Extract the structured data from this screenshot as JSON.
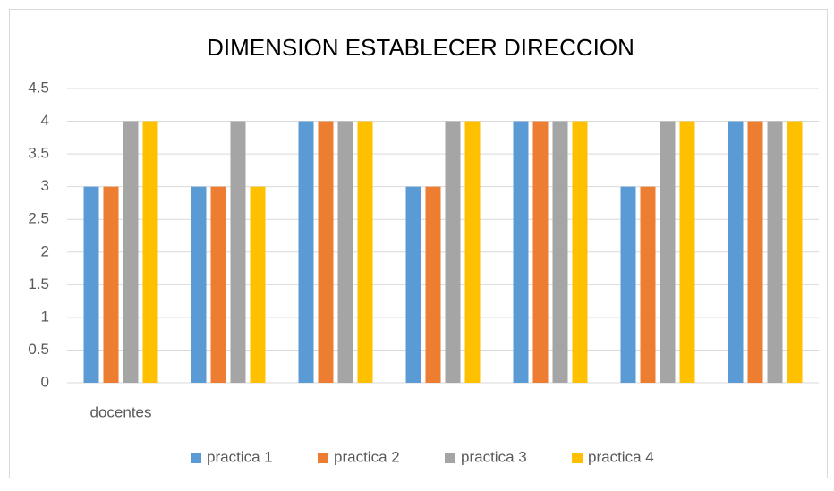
{
  "chart_data": {
    "type": "bar",
    "title": "DIMENSION ESTABLECER DIRECCION",
    "categories": [
      "docentes",
      null,
      null,
      null,
      null,
      null,
      null
    ],
    "series": [
      {
        "name": "practica 1",
        "color": "#5b9bd5",
        "values": [
          3,
          3,
          4,
          3,
          4,
          3,
          4
        ]
      },
      {
        "name": "practica 2",
        "color": "#ed7d31",
        "values": [
          3,
          3,
          4,
          3,
          4,
          3,
          4
        ]
      },
      {
        "name": "practica 3",
        "color": "#a5a5a5",
        "values": [
          4,
          4,
          4,
          4,
          4,
          4,
          4
        ]
      },
      {
        "name": "practica 4",
        "color": "#ffc000",
        "values": [
          4,
          3,
          4,
          4,
          4,
          4,
          4
        ]
      }
    ],
    "ylim": [
      0,
      4.5
    ],
    "yticks": [
      0,
      0.5,
      1,
      1.5,
      2,
      2.5,
      3,
      3.5,
      4,
      4.5
    ],
    "grid": true,
    "legend": "bottom"
  }
}
